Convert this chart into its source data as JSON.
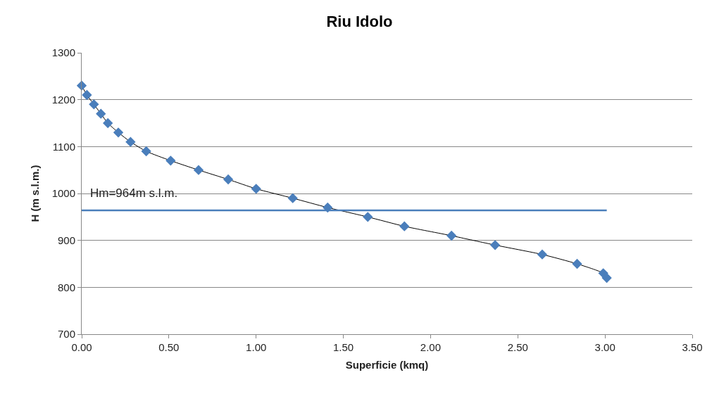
{
  "chart_data": {
    "type": "line",
    "title": "Riu Idolo",
    "xlabel": "Superficie (kmq)",
    "ylabel": "H (m s.l.m.)",
    "x": [
      0,
      0.03,
      0.07,
      0.11,
      0.15,
      0.21,
      0.28,
      0.37,
      0.51,
      0.67,
      0.84,
      1.0,
      1.21,
      1.41,
      1.64,
      1.85,
      2.12,
      2.37,
      2.64,
      2.84,
      2.99,
      3.01
    ],
    "series": [
      {
        "color": "#4a7ebb",
        "values": [
          1230,
          1210,
          1190,
          1170,
          1150,
          1130,
          1110,
          1090,
          1070,
          1050,
          1030,
          1010,
          990,
          970,
          950,
          930,
          910,
          890,
          870,
          850,
          830,
          820
        ]
      }
    ],
    "ref_lines": [
      {
        "axis": "y",
        "value": 964,
        "label": "Hm=964m s.l.m.",
        "color": "#4a7ebb"
      }
    ],
    "xlim": [
      0,
      3.5
    ],
    "xticks": [
      {
        "value": 0,
        "label": "0.00"
      },
      {
        "value": 0.5,
        "label": "0.50"
      },
      {
        "value": 1,
        "label": "1.00"
      },
      {
        "value": 1.5,
        "label": "1.50"
      },
      {
        "value": 2,
        "label": "2.00"
      },
      {
        "value": 2.5,
        "label": "2.50"
      },
      {
        "value": 3,
        "label": "3.00"
      },
      {
        "value": 3.5,
        "label": "3.50"
      }
    ],
    "ylim": [
      700,
      1300
    ],
    "yticks": [
      700,
      800,
      900,
      1000,
      1100,
      1200,
      1300
    ],
    "grid": "y",
    "marker": "diamond",
    "line_style": "solid"
  }
}
